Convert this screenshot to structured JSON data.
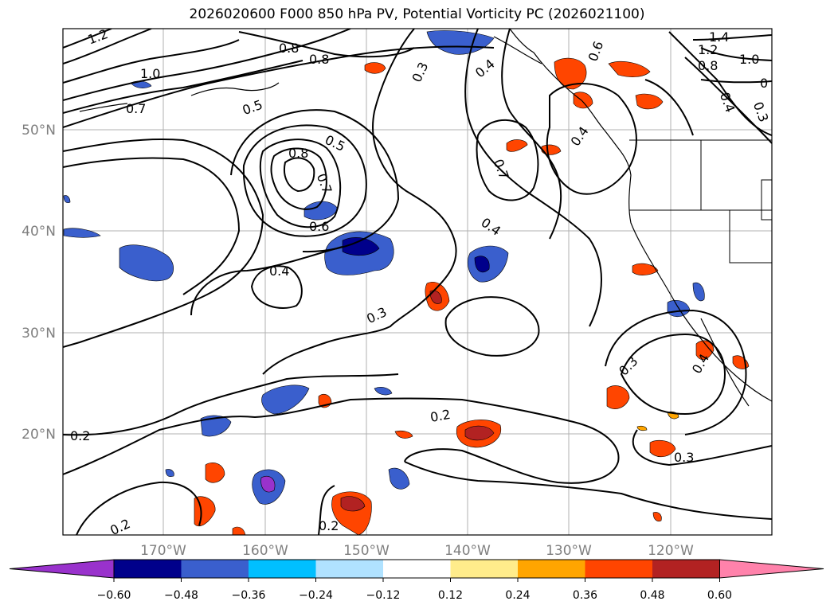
{
  "title": "2026020600 F000 850 hPa PV, Potential Vorticity PC (2026021100)",
  "lat_labels": [
    "50°N",
    "40°N",
    "30°N",
    "20°N"
  ],
  "lon_labels": [
    "170°W",
    "160°W",
    "150°W",
    "140°W",
    "130°W",
    "120°W"
  ],
  "contour_labels": [
    "1.2",
    "0.8",
    "0.8",
    "1.0",
    "0.7",
    "0.5",
    "0.5",
    "0.8",
    "0.7",
    "0.6",
    "0.4",
    "0.3",
    "0.4",
    "0.6",
    "0.7",
    "0.4",
    "0.4",
    "0.3",
    "0.2",
    "0.2",
    "0.2",
    "0.2",
    "0.3",
    "0.4",
    "0.3",
    "1.4",
    "1.2",
    "1.0",
    "0.8",
    "0.4",
    "0.3",
    "0"
  ],
  "colorbar": {
    "tick_labels": [
      "−0.60",
      "−0.48",
      "−0.36",
      "−0.24",
      "−0.12",
      "0.12",
      "0.24",
      "0.36",
      "0.48",
      "0.60"
    ],
    "colors": [
      "#9932cc",
      "#00008b",
      "#3a5fcd",
      "#00bfff",
      "#b0e2ff",
      "#ffffff",
      "#ffec8b",
      "#ffa500",
      "#ff4500",
      "#b22222",
      "#ff82ab"
    ]
  }
}
